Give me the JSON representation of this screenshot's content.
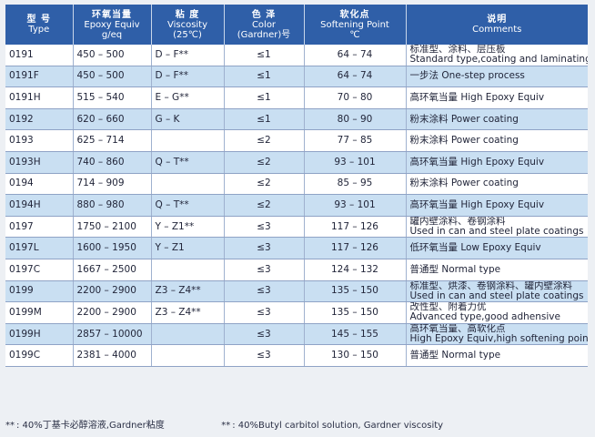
{
  "header": {
    "type": {
      "zh": "型  号",
      "en": "Type"
    },
    "epoxy": {
      "zh": "环氧当量",
      "en1": "Epoxy Equiv",
      "en2": "g/eq"
    },
    "viscosity": {
      "zh": "粘  度",
      "en1": "Viscosity",
      "en2": "(25℃)"
    },
    "color": {
      "zh": "色  泽",
      "en1": "Color",
      "en2": "(Gardner)号"
    },
    "softening": {
      "zh": "软化点",
      "en1": "Softening Point",
      "en2": "℃"
    },
    "comments": {
      "zh": "说明",
      "en": "Comments"
    }
  },
  "rows": [
    {
      "type": "0191",
      "epoxy": "450 – 500",
      "viscosity": "D – F**",
      "color": "≤1",
      "softening": "64 – 74",
      "comments": [
        "标准型、涂料、层压板",
        "Standard type,coating and laminating"
      ]
    },
    {
      "type": "0191F",
      "epoxy": "450 – 500",
      "viscosity": "D – F**",
      "color": "≤1",
      "softening": "64 – 74",
      "comments": [
        "一步法  One-step process"
      ]
    },
    {
      "type": "0191H",
      "epoxy": "515 – 540",
      "viscosity": "E – G**",
      "color": "≤1",
      "softening": "70 – 80",
      "comments": [
        "高环氧当量  High Epoxy Equiv"
      ]
    },
    {
      "type": "0192",
      "epoxy": "620 – 660",
      "viscosity": "G – K",
      "color": "≤1",
      "softening": "80 – 90",
      "comments": [
        "粉末涂料  Power coating"
      ]
    },
    {
      "type": "0193",
      "epoxy": "625 – 714",
      "viscosity": "",
      "color": "≤2",
      "softening": "77 – 85",
      "comments": [
        "粉末涂料  Power coating"
      ]
    },
    {
      "type": "0193H",
      "epoxy": "740 – 860",
      "viscosity": "Q – T**",
      "color": "≤2",
      "softening": "93 – 101",
      "comments": [
        "高环氧当量  High Epoxy Equiv"
      ]
    },
    {
      "type": "0194",
      "epoxy": "714 – 909",
      "viscosity": "",
      "color": "≤2",
      "softening": "85 – 95",
      "comments": [
        "粉末涂料  Power coating"
      ]
    },
    {
      "type": "0194H",
      "epoxy": "880 – 980",
      "viscosity": "Q – T**",
      "color": "≤2",
      "softening": "93 – 101",
      "comments": [
        "高环氧当量  High Epoxy Equiv"
      ]
    },
    {
      "type": "0197",
      "epoxy": "1750 – 2100",
      "viscosity": "Y – Z1**",
      "color": "≤3",
      "softening": "117 – 126",
      "comments": [
        "罐内壁涂料、卷钢涂料",
        "Used in can and steel plate  coatings"
      ]
    },
    {
      "type": "0197L",
      "epoxy": "1600 – 1950",
      "viscosity": "Y – Z1",
      "color": "≤3",
      "softening": "117 – 126",
      "comments": [
        "低环氧当量  Low Epoxy Equiv"
      ]
    },
    {
      "type": "0197C",
      "epoxy": "1667 – 2500",
      "viscosity": "",
      "color": "≤3",
      "softening": "124 – 132",
      "comments": [
        "普通型  Normal type"
      ]
    },
    {
      "type": "0199",
      "epoxy": "2200 – 2900",
      "viscosity": "Z3 – Z4**",
      "color": "≤3",
      "softening": "135 – 150",
      "comments": [
        "标准型、烘漆、卷钢涂料、罐内壁涂料",
        "Used in can and steel plate  coatings"
      ]
    },
    {
      "type": "0199M",
      "epoxy": "2200 – 2900",
      "viscosity": "Z3 – Z4**",
      "color": "≤3",
      "softening": "135 – 150",
      "comments": [
        "改性型、附着力优",
        "Advanced type,good adhensive"
      ]
    },
    {
      "type": "0199H",
      "epoxy": "2857 – 10000",
      "viscosity": "",
      "color": "≤3",
      "softening": "145 – 155",
      "comments": [
        "高环氧当量、高软化点",
        "High Epoxy Equiv,high softening point"
      ]
    },
    {
      "type": "0199C",
      "epoxy": "2381 – 4000",
      "viscosity": "",
      "color": "≤3",
      "softening": "130 – 150",
      "comments": [
        "普通型  Normal type"
      ]
    }
  ],
  "footnote": {
    "mark_a": "**",
    "text_a": ": 40%丁基卡必醇溶液,Gardner粘度",
    "mark_b": "**",
    "text_b": ": 40%Butyl carbitol solution, Gardner viscosity"
  },
  "colors": {
    "header": "#2f5fa8",
    "row_alt": "#c9dff2",
    "row": "#ffffff"
  }
}
